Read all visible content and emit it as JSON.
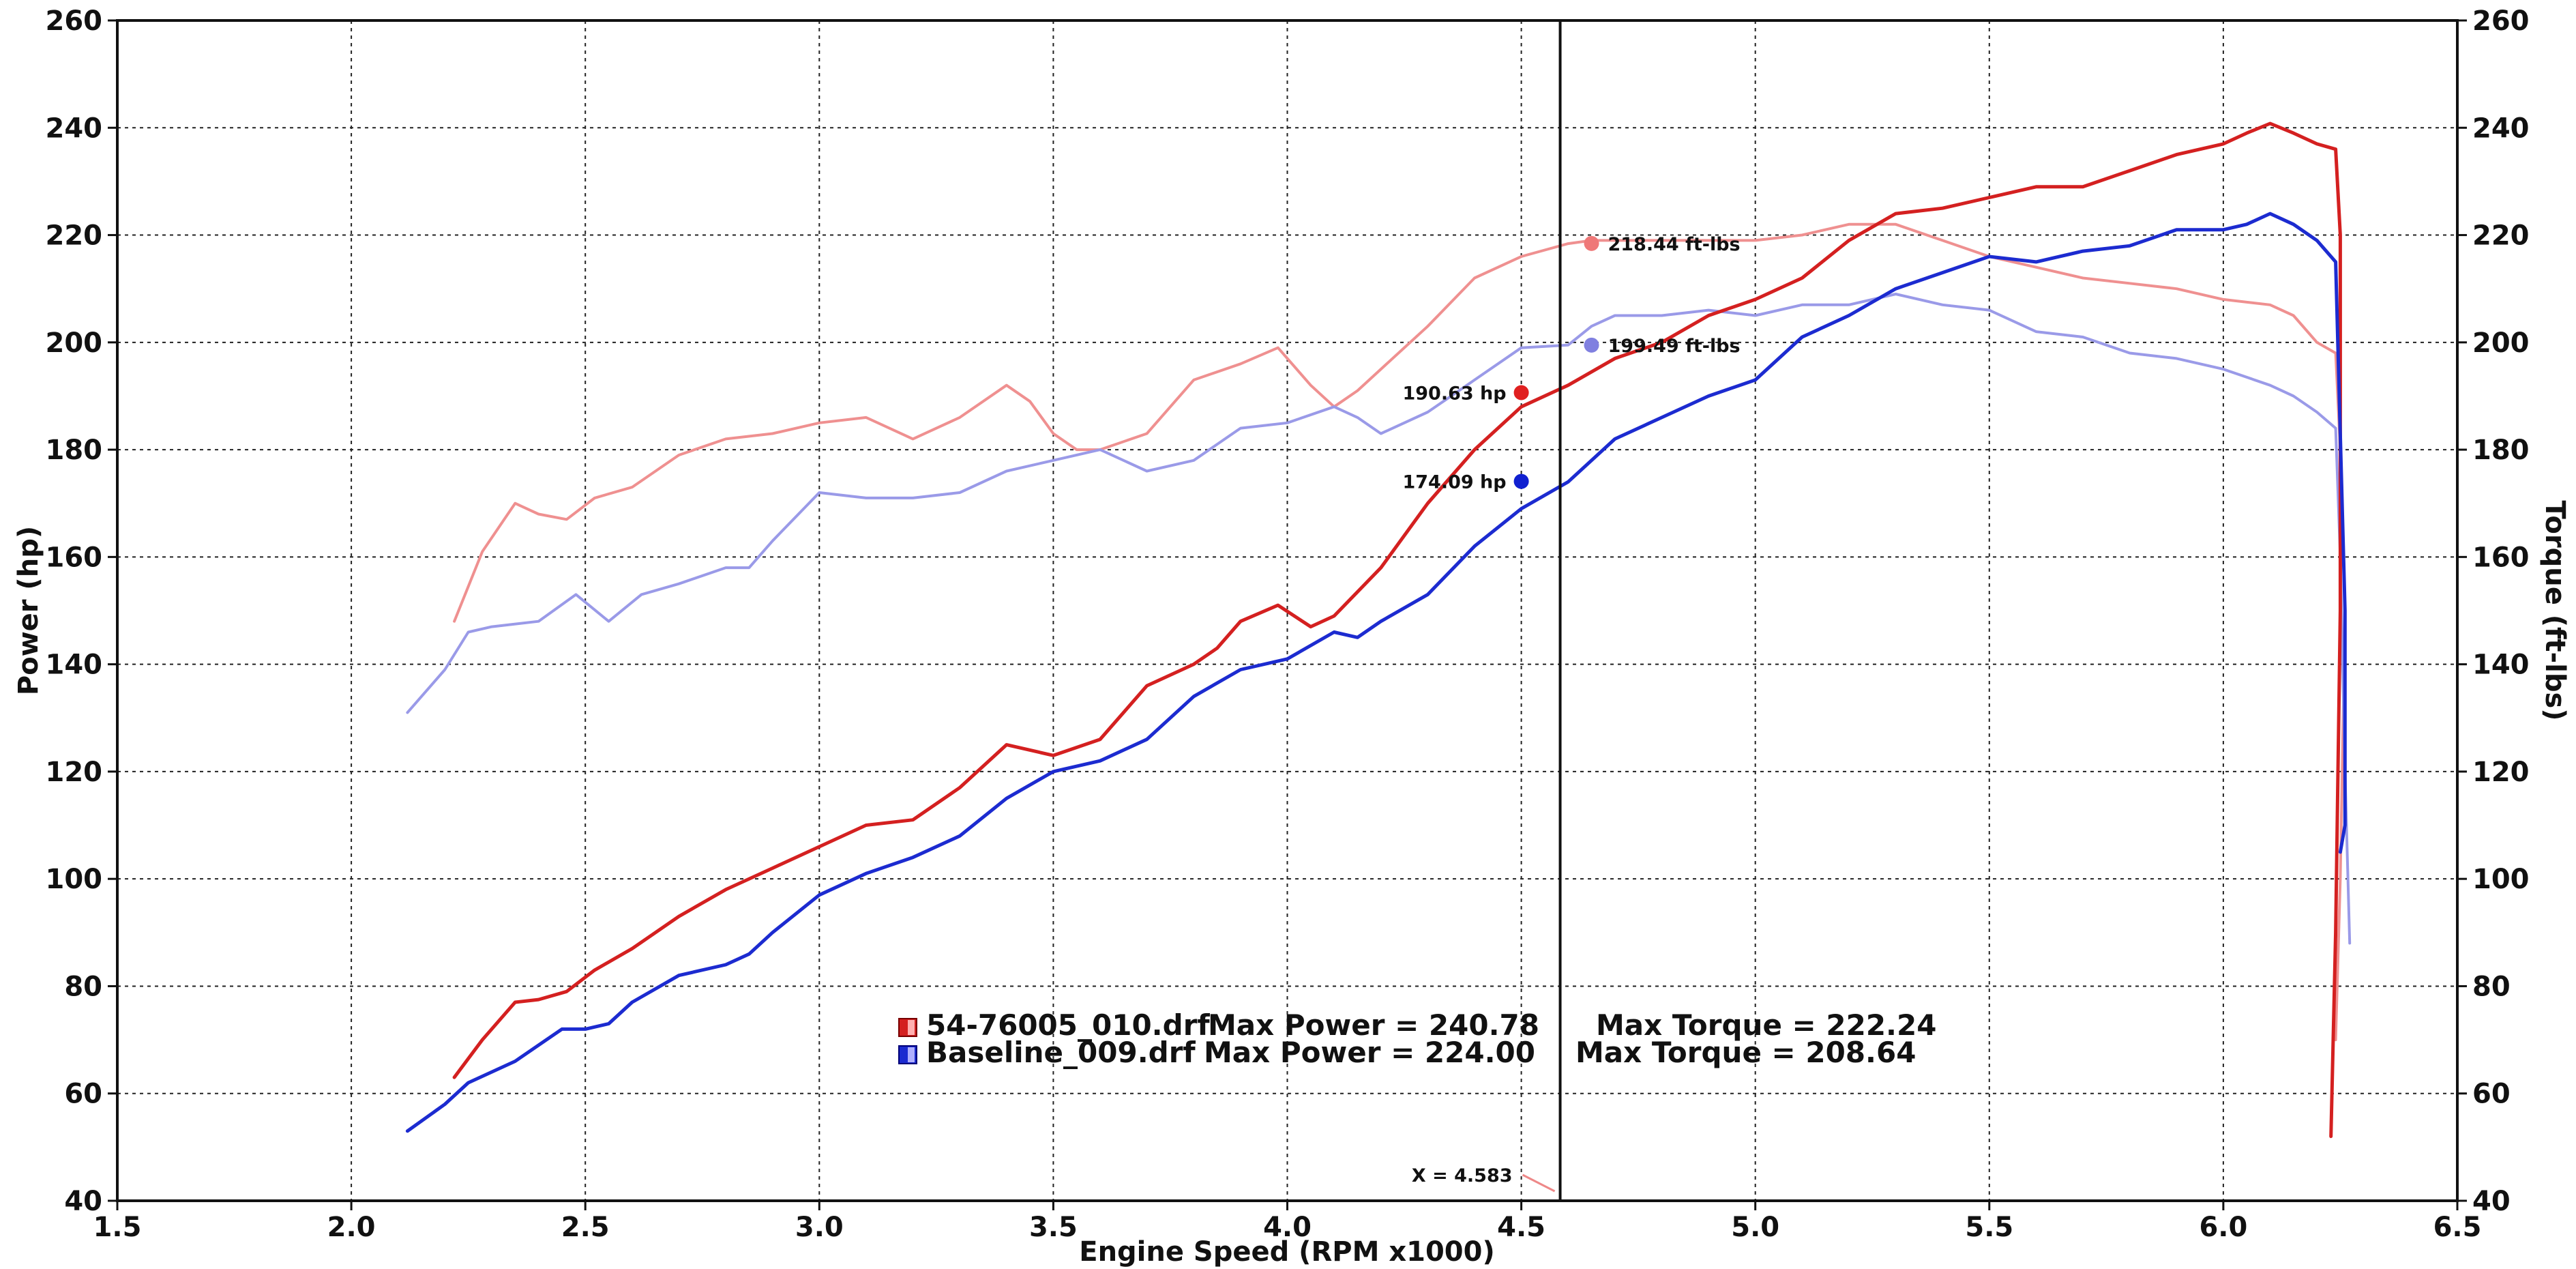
{
  "chart_data": {
    "type": "line",
    "xlabel": "Engine Speed (RPM x1000)",
    "ylabel_left": "Power (hp)",
    "ylabel_right": "Torque (ft-lbs)",
    "xlim": [
      1.5,
      6.5
    ],
    "ylim": [
      40,
      260
    ],
    "x_ticks": [
      "1.5",
      "2.0",
      "2.5",
      "3.0",
      "3.5",
      "4.0",
      "4.5",
      "5.0",
      "5.5",
      "6.0",
      "6.5"
    ],
    "y_ticks": [
      "40",
      "60",
      "80",
      "100",
      "120",
      "140",
      "160",
      "180",
      "200",
      "220",
      "240",
      "260"
    ],
    "grid": true,
    "cursor": {
      "x": 4.583,
      "label": "X = 4.583"
    },
    "series": [
      {
        "name": "54-76005_010.drf",
        "kind": "power",
        "color": "#d42020",
        "x": [
          2.22,
          2.28,
          2.35,
          2.4,
          2.46,
          2.52,
          2.6,
          2.7,
          2.8,
          2.9,
          3.0,
          3.1,
          3.2,
          3.3,
          3.4,
          3.5,
          3.6,
          3.7,
          3.8,
          3.85,
          3.9,
          3.98,
          4.05,
          4.1,
          4.2,
          4.3,
          4.4,
          4.5,
          4.6,
          4.7,
          4.8,
          4.9,
          5.0,
          5.1,
          5.2,
          5.3,
          5.4,
          5.5,
          5.6,
          5.7,
          5.8,
          5.9,
          6.0,
          6.05,
          6.1,
          6.15,
          6.2,
          6.24,
          6.25,
          6.25,
          6.24,
          6.23
        ],
        "y": [
          63,
          70,
          77,
          77.5,
          79,
          83,
          87,
          93,
          98,
          102,
          106,
          110,
          111,
          117,
          125,
          123,
          126,
          136,
          140,
          143,
          148,
          151,
          147,
          149,
          158,
          170,
          180,
          188,
          192,
          197,
          200,
          205,
          208,
          212,
          219,
          224,
          225,
          227,
          229,
          229,
          232,
          235,
          237,
          239,
          240.8,
          239,
          237,
          236,
          220,
          150,
          90,
          52
        ]
      },
      {
        "name": "Baseline_009.drf",
        "kind": "power",
        "color": "#1c2bd0",
        "x": [
          2.12,
          2.2,
          2.25,
          2.35,
          2.45,
          2.5,
          2.55,
          2.6,
          2.7,
          2.8,
          2.85,
          2.9,
          3.0,
          3.1,
          3.2,
          3.3,
          3.4,
          3.5,
          3.6,
          3.7,
          3.8,
          3.9,
          4.0,
          4.1,
          4.15,
          4.2,
          4.3,
          4.4,
          4.5,
          4.6,
          4.7,
          4.8,
          4.9,
          5.0,
          5.1,
          5.2,
          5.3,
          5.4,
          5.5,
          5.6,
          5.7,
          5.8,
          5.9,
          6.0,
          6.05,
          6.1,
          6.15,
          6.2,
          6.24,
          6.26,
          6.26,
          6.25
        ],
        "y": [
          53,
          58,
          62,
          66,
          72,
          72,
          73,
          77,
          82,
          84,
          86,
          90,
          97,
          101,
          104,
          108,
          115,
          120,
          122,
          126,
          134,
          139,
          141,
          146,
          145,
          148,
          153,
          162,
          169,
          174,
          182,
          186,
          190,
          193,
          201,
          205,
          210,
          213,
          216,
          215,
          217,
          218,
          221,
          221,
          222,
          224,
          222,
          219,
          215,
          150,
          110,
          105
        ]
      },
      {
        "name": "54-76005_010.drf",
        "kind": "torque",
        "color": "#ef9090",
        "x": [
          2.22,
          2.28,
          2.35,
          2.4,
          2.46,
          2.52,
          2.6,
          2.7,
          2.8,
          2.9,
          3.0,
          3.1,
          3.2,
          3.3,
          3.4,
          3.45,
          3.5,
          3.55,
          3.6,
          3.7,
          3.8,
          3.9,
          3.98,
          4.05,
          4.1,
          4.15,
          4.2,
          4.3,
          4.4,
          4.5,
          4.6,
          4.65,
          4.7,
          4.8,
          4.9,
          5.0,
          5.1,
          5.2,
          5.3,
          5.4,
          5.5,
          5.6,
          5.7,
          5.8,
          5.9,
          6.0,
          6.1,
          6.15,
          6.2,
          6.24,
          6.25,
          6.26,
          6.25,
          6.24
        ],
        "y": [
          148,
          161,
          170,
          168,
          167,
          171,
          173,
          179,
          182,
          183,
          185,
          186,
          182,
          186,
          192,
          189,
          183,
          180,
          180,
          183,
          193,
          196,
          199,
          192,
          188,
          191,
          195,
          203,
          212,
          216,
          218.4,
          219,
          219,
          219,
          219,
          219,
          220,
          222,
          222,
          219,
          216,
          214,
          212,
          211,
          210,
          208,
          207,
          205,
          200,
          198,
          180,
          150,
          100,
          70
        ]
      },
      {
        "name": "Baseline_009.drf",
        "kind": "torque",
        "color": "#9a9ae8",
        "x": [
          2.12,
          2.2,
          2.25,
          2.3,
          2.4,
          2.48,
          2.55,
          2.62,
          2.7,
          2.8,
          2.85,
          2.9,
          3.0,
          3.1,
          3.2,
          3.3,
          3.4,
          3.5,
          3.6,
          3.7,
          3.8,
          3.9,
          4.0,
          4.1,
          4.15,
          4.2,
          4.3,
          4.4,
          4.5,
          4.6,
          4.65,
          4.7,
          4.8,
          4.9,
          5.0,
          5.1,
          5.2,
          5.3,
          5.4,
          5.5,
          5.6,
          5.7,
          5.8,
          5.9,
          6.0,
          6.1,
          6.15,
          6.2,
          6.24,
          6.25,
          6.26,
          6.27
        ],
        "y": [
          131,
          139,
          146,
          147,
          148,
          153,
          148,
          153,
          155,
          158,
          158,
          163,
          172,
          171,
          171,
          172,
          176,
          178,
          180,
          176,
          178,
          184,
          185,
          188,
          186,
          183,
          187,
          193,
          199,
          199.5,
          203,
          205,
          205,
          206,
          205,
          207,
          207,
          209,
          207,
          206,
          202,
          201,
          198,
          197,
          195,
          192,
          190,
          187,
          184,
          160,
          120,
          88
        ]
      }
    ],
    "annotations": [
      {
        "series": "54-76005_010.drf",
        "kind": "torque",
        "x": 4.65,
        "y": 218.44,
        "label": "218.44 ft-lbs",
        "color": "#ef7878"
      },
      {
        "series": "Baseline_009.drf",
        "kind": "torque",
        "x": 4.65,
        "y": 199.49,
        "label": "199.49 ft-lbs",
        "color": "#8080e0"
      },
      {
        "series": "54-76005_010.drf",
        "kind": "power",
        "x": 4.5,
        "y": 190.63,
        "label": "190.63 hp",
        "color": "#e02020"
      },
      {
        "series": "Baseline_009.drf",
        "kind": "power",
        "x": 4.5,
        "y": 174.09,
        "label": "174.09 hp",
        "color": "#1020d0"
      }
    ],
    "legend": {
      "placement": "bottom-center",
      "entries": [
        {
          "file": "54-76005_010.drf",
          "power_text": "Max Power = 240.78",
          "torque_text": "Max Torque = 222.24",
          "color": "#d42020"
        },
        {
          "file": "Baseline_009.drf",
          "power_text": "Max Power = 224.00",
          "torque_text": "Max Torque = 208.64",
          "color": "#1c2bd0"
        }
      ]
    }
  }
}
